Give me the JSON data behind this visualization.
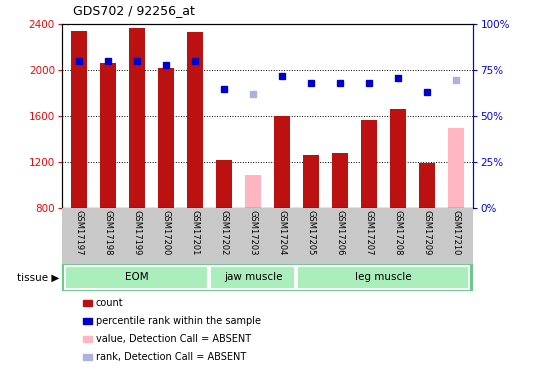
{
  "title": "GDS702 / 92256_at",
  "categories": [
    "GSM17197",
    "GSM17198",
    "GSM17199",
    "GSM17200",
    "GSM17201",
    "GSM17202",
    "GSM17203",
    "GSM17204",
    "GSM17205",
    "GSM17206",
    "GSM17207",
    "GSM17208",
    "GSM17209",
    "GSM17210"
  ],
  "bar_values": [
    2340,
    2060,
    2370,
    2020,
    2330,
    1220,
    1090,
    1600,
    1260,
    1280,
    1570,
    1660,
    1190,
    1500
  ],
  "bar_absent": [
    false,
    false,
    false,
    false,
    false,
    false,
    true,
    false,
    false,
    false,
    false,
    false,
    false,
    true
  ],
  "rank_values": [
    80,
    80,
    80,
    78,
    80,
    65,
    62,
    72,
    68,
    68,
    68,
    71,
    63,
    70
  ],
  "rank_absent": [
    false,
    false,
    false,
    false,
    false,
    false,
    true,
    false,
    false,
    false,
    false,
    false,
    false,
    true
  ],
  "ylim_left": [
    800,
    2400
  ],
  "ylim_right": [
    0,
    100
  ],
  "yticks_left": [
    800,
    1200,
    1600,
    2000,
    2400
  ],
  "yticks_right": [
    0,
    25,
    50,
    75,
    100
  ],
  "group_defs": [
    [
      0,
      4,
      "EOM"
    ],
    [
      5,
      7,
      "jaw muscle"
    ],
    [
      8,
      13,
      "leg muscle"
    ]
  ],
  "tissue_label": "tissue",
  "bar_color_present": "#bb1111",
  "bar_color_absent": "#ffb6c1",
  "rank_color_present": "#0000cc",
  "rank_color_absent": "#b0b0dd",
  "bg_color": "#ffffff",
  "xtick_area_color": "#c8c8c8",
  "group_color_light": "#aaeebb",
  "group_color_dark": "#66cc88",
  "grid_lines": [
    1200,
    1600,
    2000
  ],
  "legend_labels": [
    "count",
    "percentile rank within the sample",
    "value, Detection Call = ABSENT",
    "rank, Detection Call = ABSENT"
  ],
  "legend_colors": [
    "#bb1111",
    "#0000cc",
    "#ffb6c1",
    "#b0b0dd"
  ]
}
